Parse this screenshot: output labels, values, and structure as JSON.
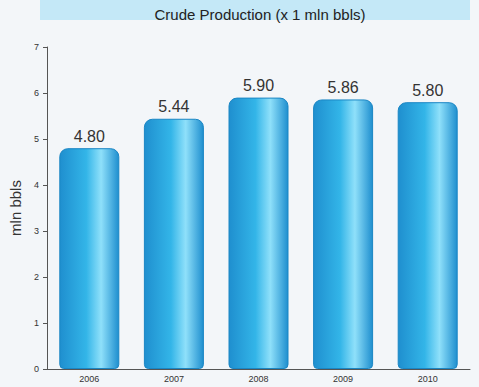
{
  "chart_data": {
    "type": "bar",
    "title": "Crude Production (x 1 mln bbls)",
    "y_label": "mln bbls",
    "categories": [
      "2006",
      "2007",
      "2008",
      "2009",
      "2010"
    ],
    "values": [
      4.8,
      5.44,
      5.9,
      5.86,
      5.8
    ],
    "value_labels": [
      "4.80",
      "5.44",
      "5.90",
      "5.86",
      "5.80"
    ],
    "color": "#33b5e8",
    "ylim": [
      0,
      7
    ],
    "yticks": [
      0,
      1,
      2,
      3,
      4,
      5,
      6,
      7
    ],
    "grid": false,
    "data_labels": true
  }
}
